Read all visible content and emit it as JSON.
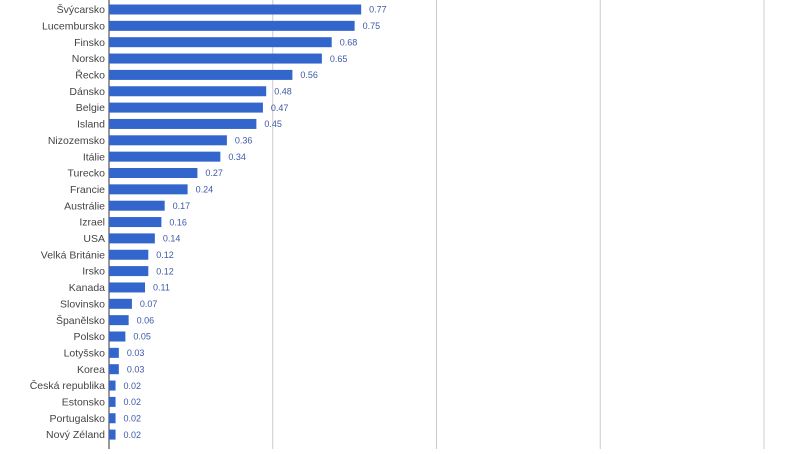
{
  "chart_data": {
    "type": "bar",
    "orientation": "horizontal",
    "title": "",
    "xlabel": "",
    "ylabel": "",
    "xlim": [
      0,
      2.0
    ],
    "grid": true,
    "legend": "none",
    "colors": {
      "bar": "#3366cc",
      "value_label": "#3d5aa8",
      "category_label": "#444444",
      "grid": "#cccccc"
    },
    "categories": [
      "Švýcarsko",
      "Lucembursko",
      "Finsko",
      "Norsko",
      "Řecko",
      "Dánsko",
      "Belgie",
      "Island",
      "Nizozemsko",
      "Itálie",
      "Turecko",
      "Francie",
      "Austrálie",
      "Izrael",
      "USA",
      "Velká Británie",
      "Irsko",
      "Kanada",
      "Slovinsko",
      "Španělsko",
      "Polsko",
      "Lotyšsko",
      "Korea",
      "Česká republika",
      "Estonsko",
      "Portugalsko",
      "Nový Zéland"
    ],
    "values": [
      0.77,
      0.75,
      0.68,
      0.65,
      0.56,
      0.48,
      0.47,
      0.45,
      0.36,
      0.34,
      0.27,
      0.24,
      0.17,
      0.16,
      0.14,
      0.12,
      0.12,
      0.11,
      0.07,
      0.06,
      0.05,
      0.03,
      0.03,
      0.02,
      0.02,
      0.02,
      0.02
    ],
    "value_labels": [
      "0.77",
      "0.75",
      "0.68",
      "0.65",
      "0.56",
      "0.48",
      "0.47",
      "0.45",
      "0.36",
      "0.34",
      "0.27",
      "0.24",
      "0.17",
      "0.16",
      "0.14",
      "0.12",
      "0.12",
      "0.11",
      "0.07",
      "0.06",
      "0.05",
      "0.03",
      "0.03",
      "0.02",
      "0.02",
      "0.02",
      "0.02"
    ]
  }
}
